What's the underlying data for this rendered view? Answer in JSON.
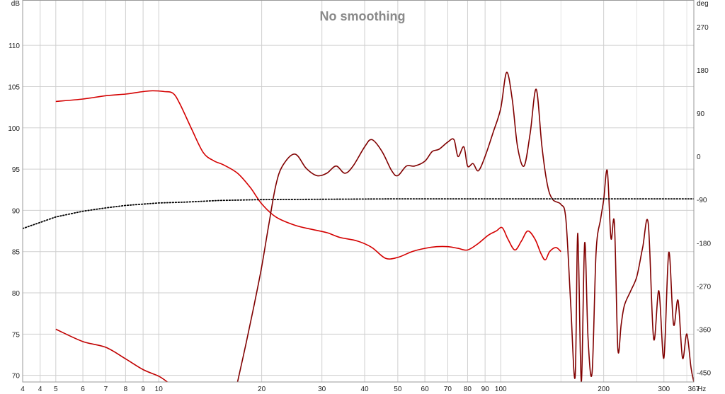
{
  "chart_data": {
    "type": "line",
    "title": "No smoothing",
    "x_scale": "log",
    "xlim": [
      4,
      367
    ],
    "x_unit": "Hz",
    "y_left_unit": "dB",
    "y_right_unit": "deg",
    "ylim_left": [
      69.2,
      115.5
    ],
    "ylim_right": [
      -470,
      326
    ],
    "x_ticks": [
      {
        "value": 4,
        "label": "4"
      },
      {
        "value": 4.5,
        "label": "4"
      },
      {
        "value": 5,
        "label": "5"
      },
      {
        "value": 6,
        "label": "6"
      },
      {
        "value": 7,
        "label": "7"
      },
      {
        "value": 8,
        "label": "8"
      },
      {
        "value": 9,
        "label": "9"
      },
      {
        "value": 10,
        "label": "10"
      },
      {
        "value": 20,
        "label": "20"
      },
      {
        "value": 30,
        "label": "30"
      },
      {
        "value": 40,
        "label": "40"
      },
      {
        "value": 50,
        "label": "50"
      },
      {
        "value": 60,
        "label": "60"
      },
      {
        "value": 70,
        "label": "70"
      },
      {
        "value": 80,
        "label": "80"
      },
      {
        "value": 90,
        "label": "90"
      },
      {
        "value": 100,
        "label": "100"
      },
      {
        "value": 200,
        "label": "200"
      },
      {
        "value": 300,
        "label": "300"
      },
      {
        "value": 367,
        "label": "367"
      }
    ],
    "x_minor_grid": [
      150,
      250,
      350
    ],
    "y_left_ticks": [
      70,
      75,
      80,
      85,
      90,
      95,
      100,
      105,
      110
    ],
    "y_right_ticks": [
      -450,
      -360,
      -270,
      -180,
      -90,
      0,
      90,
      180,
      270
    ],
    "grid": true,
    "series": [
      {
        "axis": "left",
        "color": "#d40000",
        "style": "solid",
        "x": [
          5,
          6,
          7,
          8,
          9,
          9.6,
          10.4,
          11,
          11.5,
          12.5,
          13.5,
          14.5,
          15.5,
          17,
          18.5,
          20,
          22,
          25,
          28,
          31,
          34,
          38,
          42,
          46,
          50,
          55,
          60,
          65,
          70,
          75,
          80,
          86,
          92,
          97,
          101,
          105,
          110,
          115,
          120,
          126,
          131,
          135,
          139,
          145,
          150
        ],
        "values": [
          103.2,
          103.5,
          103.9,
          104.1,
          104.4,
          104.5,
          104.4,
          104.2,
          103.0,
          99.8,
          97.0,
          96.0,
          95.5,
          94.5,
          92.8,
          90.8,
          89.2,
          88.2,
          87.7,
          87.3,
          86.7,
          86.3,
          85.5,
          84.2,
          84.3,
          85.0,
          85.4,
          85.6,
          85.6,
          85.4,
          85.2,
          86.0,
          87.0,
          87.5,
          87.9,
          86.5,
          85.2,
          86.3,
          87.5,
          86.5,
          84.8,
          84.0,
          85.0,
          85.5,
          85.0
        ]
      },
      {
        "axis": "left",
        "color": "#c00000",
        "style": "solid",
        "x": [
          5,
          6,
          7,
          8,
          9,
          10,
          10.6
        ],
        "values": [
          75.6,
          74.1,
          73.4,
          72.0,
          70.7,
          69.9,
          69.2
        ]
      },
      {
        "axis": "right",
        "color": "#800000",
        "style": "solid",
        "x": [
          17,
          18,
          19,
          20,
          21,
          22,
          23,
          25,
          27,
          29,
          31,
          33,
          35,
          37,
          40,
          42,
          45,
          48,
          50,
          53,
          56,
          60,
          63,
          66,
          70,
          73,
          75,
          78,
          80,
          83,
          86,
          90,
          95,
          100,
          104,
          108,
          112,
          117,
          122,
          127,
          132,
          137,
          142,
          150,
          155,
          160,
          165,
          168,
          172,
          176,
          180,
          185,
          190,
          196,
          200,
          205,
          210,
          215,
          220,
          225,
          230,
          240,
          250,
          260,
          270,
          280,
          290,
          300,
          310,
          320,
          330,
          340,
          350,
          360,
          367
        ],
        "values": [
          -470,
          -390,
          -310,
          -230,
          -140,
          -60,
          -20,
          5,
          -25,
          -40,
          -35,
          -20,
          -35,
          -20,
          20,
          35,
          10,
          -30,
          -40,
          -20,
          -20,
          -10,
          10,
          15,
          30,
          35,
          0,
          20,
          -20,
          -15,
          -30,
          0,
          50,
          100,
          175,
          120,
          20,
          -20,
          50,
          140,
          20,
          -60,
          -90,
          -100,
          -130,
          -300,
          -460,
          -160,
          -470,
          -180,
          -380,
          -450,
          -200,
          -130,
          -90,
          -30,
          -170,
          -140,
          -400,
          -350,
          -310,
          -280,
          -250,
          -190,
          -140,
          -380,
          -280,
          -420,
          -200,
          -350,
          -300,
          -420,
          -370,
          -440,
          -470
        ]
      },
      {
        "axis": "left",
        "color": "#000000",
        "style": "dotted",
        "x": [
          4,
          5,
          6,
          7,
          8,
          10,
          12,
          15,
          20,
          30,
          50,
          100,
          200,
          367
        ],
        "values": [
          87.8,
          89.2,
          89.9,
          90.3,
          90.6,
          90.9,
          91.0,
          91.2,
          91.3,
          91.35,
          91.4,
          91.4,
          91.4,
          91.4
        ]
      }
    ]
  }
}
